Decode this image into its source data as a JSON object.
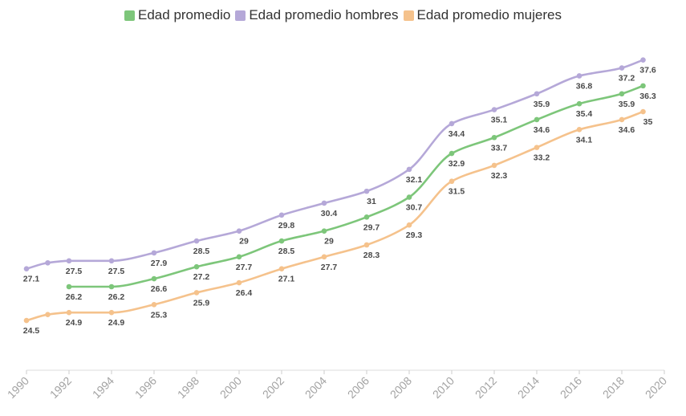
{
  "chart_data": {
    "type": "line",
    "title": "",
    "xlabel": "",
    "ylabel": "",
    "xlim": [
      1990,
      2020
    ],
    "ylim": [
      22,
      39
    ],
    "x_ticks": [
      "1990",
      "1992",
      "1994",
      "1996",
      "1998",
      "2000",
      "2002",
      "2004",
      "2006",
      "2008",
      "2010",
      "2012",
      "2014",
      "2016",
      "2018",
      "2020"
    ],
    "grid": false,
    "legend_position": "top-center",
    "series": [
      {
        "name": "Edad promedio",
        "color": "#7dc67a",
        "points": [
          {
            "x": 1992,
            "y": 26.2,
            "label": "26.2"
          },
          {
            "x": 1994,
            "y": 26.2,
            "label": "26.2"
          },
          {
            "x": 1996,
            "y": 26.6,
            "label": "26.6"
          },
          {
            "x": 1998,
            "y": 27.2,
            "label": "27.2"
          },
          {
            "x": 2000,
            "y": 27.7,
            "label": "27.7"
          },
          {
            "x": 2002,
            "y": 28.5,
            "label": "28.5"
          },
          {
            "x": 2004,
            "y": 29.0,
            "label": "29"
          },
          {
            "x": 2006,
            "y": 29.7,
            "label": "29.7"
          },
          {
            "x": 2008,
            "y": 30.7,
            "label": "30.7"
          },
          {
            "x": 2010,
            "y": 32.9,
            "label": "32.9"
          },
          {
            "x": 2012,
            "y": 33.7,
            "label": "33.7"
          },
          {
            "x": 2014,
            "y": 34.6,
            "label": "34.6"
          },
          {
            "x": 2016,
            "y": 35.4,
            "label": "35.4"
          },
          {
            "x": 2018,
            "y": 35.9,
            "label": "35.9"
          },
          {
            "x": 2019,
            "y": 36.3,
            "label": "36.3"
          }
        ]
      },
      {
        "name": "Edad promedio hombres",
        "color": "#b5a8d8",
        "points": [
          {
            "x": 1990,
            "y": 27.1,
            "label": "27.1"
          },
          {
            "x": 1991,
            "y": 27.4,
            "label": ""
          },
          {
            "x": 1992,
            "y": 27.5,
            "label": "27.5"
          },
          {
            "x": 1994,
            "y": 27.5,
            "label": "27.5"
          },
          {
            "x": 1996,
            "y": 27.9,
            "label": "27.9"
          },
          {
            "x": 1998,
            "y": 28.5,
            "label": "28.5"
          },
          {
            "x": 2000,
            "y": 29.0,
            "label": "29"
          },
          {
            "x": 2002,
            "y": 29.8,
            "label": "29.8"
          },
          {
            "x": 2004,
            "y": 30.4,
            "label": "30.4"
          },
          {
            "x": 2006,
            "y": 31.0,
            "label": "31"
          },
          {
            "x": 2008,
            "y": 32.1,
            "label": "32.1"
          },
          {
            "x": 2010,
            "y": 34.4,
            "label": "34.4"
          },
          {
            "x": 2012,
            "y": 35.1,
            "label": "35.1"
          },
          {
            "x": 2014,
            "y": 35.9,
            "label": "35.9"
          },
          {
            "x": 2016,
            "y": 36.8,
            "label": "36.8"
          },
          {
            "x": 2018,
            "y": 37.2,
            "label": "37.2"
          },
          {
            "x": 2019,
            "y": 37.6,
            "label": "37.6"
          }
        ]
      },
      {
        "name": "Edad promedio mujeres",
        "color": "#f5c28c",
        "points": [
          {
            "x": 1990,
            "y": 24.5,
            "label": "24.5"
          },
          {
            "x": 1991,
            "y": 24.8,
            "label": ""
          },
          {
            "x": 1992,
            "y": 24.9,
            "label": "24.9"
          },
          {
            "x": 1994,
            "y": 24.9,
            "label": "24.9"
          },
          {
            "x": 1996,
            "y": 25.3,
            "label": "25.3"
          },
          {
            "x": 1998,
            "y": 25.9,
            "label": "25.9"
          },
          {
            "x": 2000,
            "y": 26.4,
            "label": "26.4"
          },
          {
            "x": 2002,
            "y": 27.1,
            "label": "27.1"
          },
          {
            "x": 2004,
            "y": 27.7,
            "label": "27.7"
          },
          {
            "x": 2006,
            "y": 28.3,
            "label": "28.3"
          },
          {
            "x": 2008,
            "y": 29.3,
            "label": "29.3"
          },
          {
            "x": 2010,
            "y": 31.5,
            "label": "31.5"
          },
          {
            "x": 2012,
            "y": 32.3,
            "label": "32.3"
          },
          {
            "x": 2014,
            "y": 33.2,
            "label": "33.2"
          },
          {
            "x": 2016,
            "y": 34.1,
            "label": "34.1"
          },
          {
            "x": 2018,
            "y": 34.6,
            "label": "34.6"
          },
          {
            "x": 2019,
            "y": 35.0,
            "label": "35"
          }
        ]
      }
    ]
  }
}
